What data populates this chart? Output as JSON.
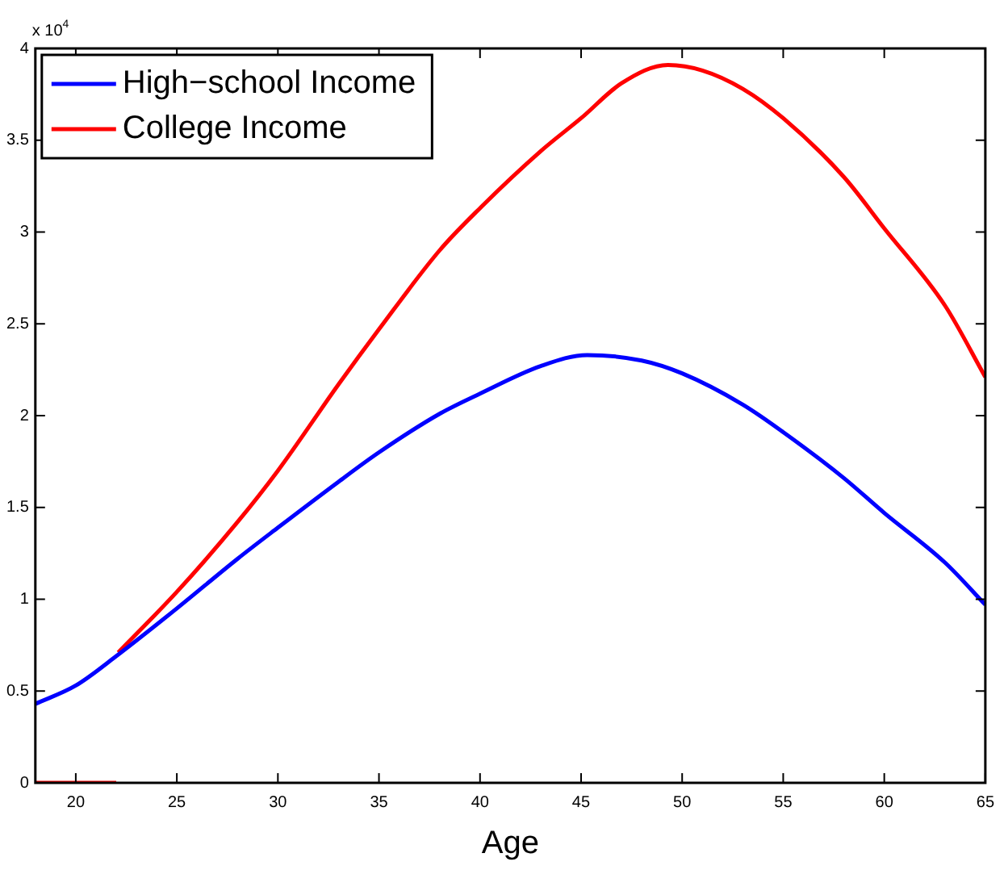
{
  "chart_data": {
    "type": "line",
    "xlabel": "Age",
    "annotations": [
      "x 10$^{4}$"
    ],
    "xlim": [
      18,
      65
    ],
    "xticks": [
      20,
      25,
      30,
      35,
      40,
      45,
      50,
      55,
      60,
      65
    ],
    "ylim": [
      0,
      4
    ],
    "yticks": [
      0,
      0.5,
      1,
      1.5,
      2,
      2.5,
      3,
      3.5,
      4
    ],
    "legend": "top left",
    "grid": false,
    "marker": "none",
    "line_style": "solid",
    "series": [
      {
        "name": "High−school Income",
        "color": "#0000ff",
        "x": [
          18,
          20,
          22,
          25,
          28,
          30,
          33,
          35,
          38,
          40,
          43,
          45.3,
          48,
          50,
          53,
          55,
          58,
          60,
          63,
          65
        ],
        "values": [
          0.43,
          0.53,
          0.69,
          0.95,
          1.22,
          1.39,
          1.64,
          1.8,
          2.01,
          2.12,
          2.27,
          2.33,
          2.3,
          2.23,
          2.06,
          1.91,
          1.66,
          1.47,
          1.2,
          0.97
        ]
      },
      {
        "name": "College Income",
        "color": "#ff0000",
        "x": [
          18,
          22,
          null,
          22.1,
          25,
          28,
          30,
          33,
          35,
          38,
          40,
          43,
          45,
          47,
          49.3,
          51,
          53,
          55,
          58,
          60,
          63,
          65
        ],
        "values": [
          0,
          0,
          null,
          0.71,
          1.04,
          1.42,
          1.7,
          2.17,
          2.47,
          2.9,
          3.13,
          3.44,
          3.62,
          3.81,
          3.91,
          3.88,
          3.78,
          3.62,
          3.3,
          3.02,
          2.6,
          2.21
        ]
      }
    ]
  }
}
